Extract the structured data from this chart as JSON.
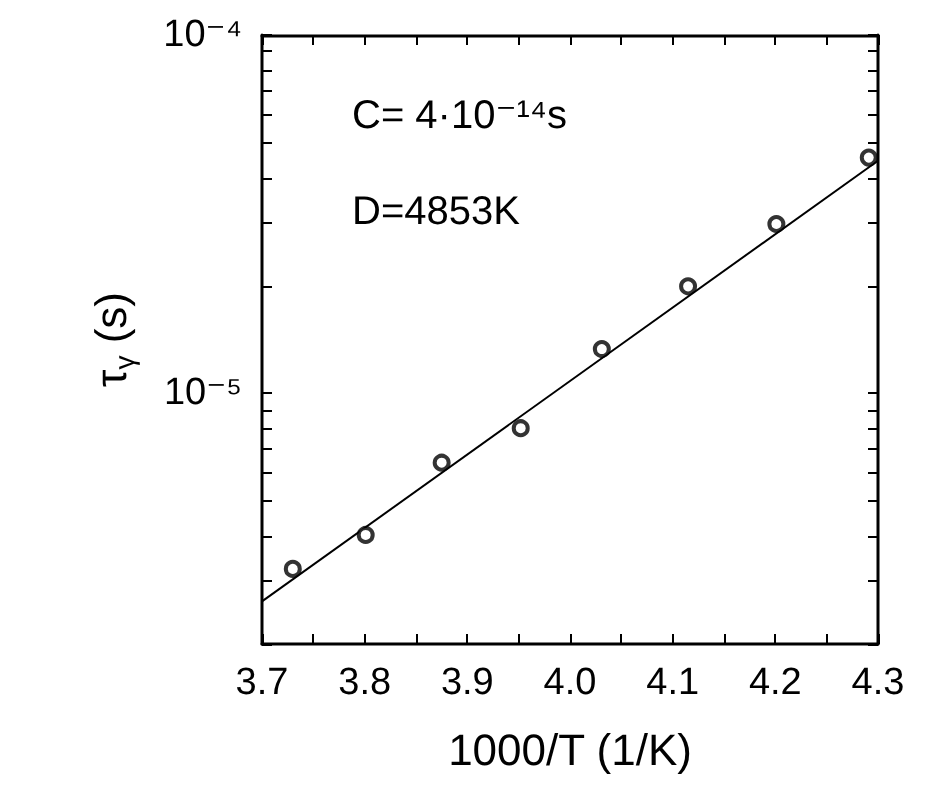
{
  "chart_data": {
    "type": "scatter",
    "xlabel": "1000/T (1/K)",
    "ylabel": "τ$_{γ}$ (s)",
    "annotations": [
      "C= 4·10⁻¹⁴s",
      "D=4853K"
    ],
    "log": "y",
    "xlim": [
      3.7,
      4.3
    ],
    "ylim": [
      2e-06,
      0.0001
    ],
    "xticks": [
      3.7,
      {
        "value": 3.75,
        "label": null
      },
      3.8,
      {
        "value": 3.85,
        "label": null
      },
      3.9,
      {
        "value": 3.95,
        "label": null
      },
      {
        "value": 4,
        "label": "4.0"
      },
      {
        "value": 4.05,
        "label": null
      },
      4.1,
      {
        "value": 4.15,
        "label": null
      },
      4.2,
      {
        "value": 4.25,
        "label": null
      },
      4.3
    ],
    "yticks": [
      {
        "value": 2e-06,
        "label": null
      },
      {
        "value": 3e-06,
        "label": null
      },
      {
        "value": 4e-06,
        "label": null
      },
      {
        "value": 5e-06,
        "label": null
      },
      {
        "value": 6e-06,
        "label": null
      },
      {
        "value": 7e-06,
        "label": null
      },
      {
        "value": 8e-06,
        "label": null
      },
      {
        "value": 9e-06,
        "label": null
      },
      {
        "value": 1e-05,
        "label": "10⁻⁵"
      },
      {
        "value": 2e-05,
        "label": null
      },
      {
        "value": 3e-05,
        "label": null
      },
      {
        "value": 4e-05,
        "label": null
      },
      {
        "value": 5e-05,
        "label": null
      },
      {
        "value": 6e-05,
        "label": null
      },
      {
        "value": 7e-05,
        "label": null
      },
      {
        "value": 8e-05,
        "label": null
      },
      {
        "value": 9e-05,
        "label": null
      },
      {
        "value": 0.0001,
        "label": "10⁻⁴"
      }
    ],
    "grid": false,
    "series": [
      {
        "marker": "circle",
        "color": "#000000",
        "x": [
          3.73,
          3.801,
          3.875,
          3.952,
          4.031,
          4.115,
          4.201,
          4.291
        ],
        "values": [
          3.24e-06,
          4.03e-06,
          6.41e-06,
          8e-06,
          1.33e-05,
          1.99e-05,
          2.97e-05,
          4.55e-05
        ]
      },
      {
        "type": "line",
        "marker": "none",
        "line_style": "solid",
        "color": "#000000",
        "x": [
          3.7,
          4.3
        ],
        "values": [
          2.63e-06,
          4.46e-05
        ]
      }
    ]
  }
}
